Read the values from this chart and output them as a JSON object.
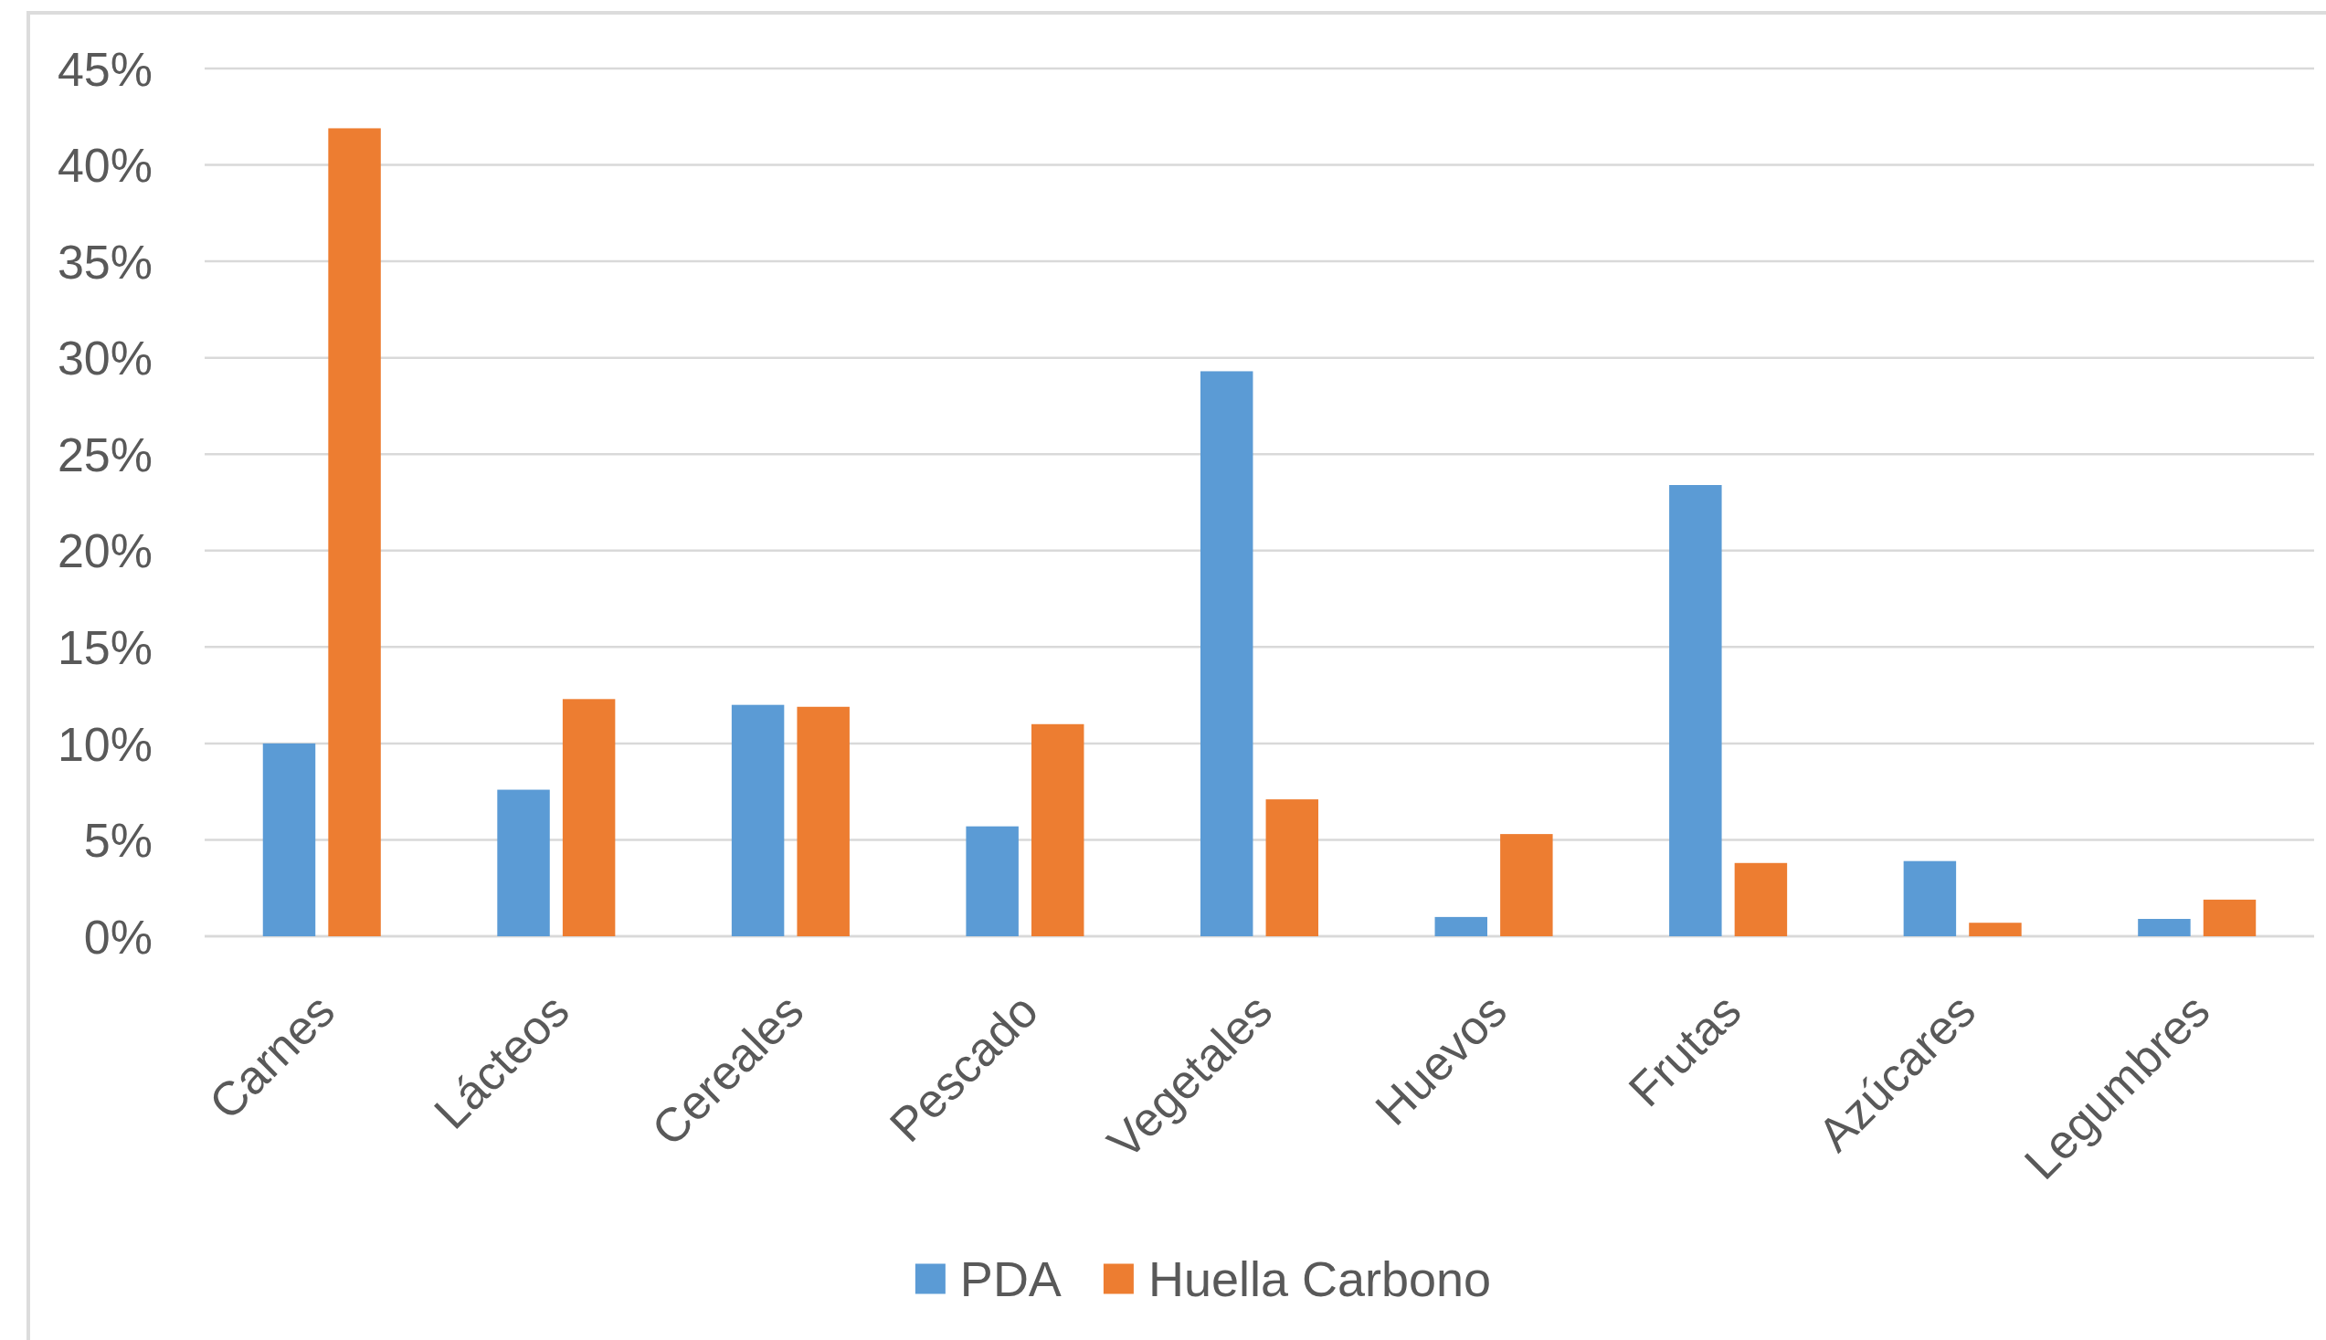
{
  "chart_data": {
    "type": "bar",
    "categories": [
      "Carnes",
      "Lácteos",
      "Cereales",
      "Pescado",
      "Vegetales",
      "Huevos",
      "Frutas",
      "Azúcares",
      "Legumbres"
    ],
    "series": [
      {
        "name": "PDA",
        "color": "#5b9bd5",
        "values": [
          10,
          7.6,
          12,
          5.7,
          29.3,
          1,
          23.4,
          3.9,
          0.9
        ]
      },
      {
        "name": "Huella Carbono",
        "color": "#ed7d31",
        "values": [
          41.9,
          12.3,
          11.9,
          11,
          7.1,
          5.3,
          3.8,
          0.7,
          1.9
        ]
      }
    ],
    "ylim": [
      0,
      45
    ],
    "yticks": [
      {
        "value": 0,
        "label": "0%"
      },
      {
        "value": 5,
        "label": "5%"
      },
      {
        "value": 10,
        "label": "10%"
      },
      {
        "value": 15,
        "label": "15%"
      },
      {
        "value": 20,
        "label": "20%"
      },
      {
        "value": 25,
        "label": "25%"
      },
      {
        "value": 30,
        "label": "30%"
      },
      {
        "value": 35,
        "label": "35%"
      },
      {
        "value": 40,
        "label": "40%"
      },
      {
        "value": 45,
        "label": "45%"
      }
    ],
    "grid": "y",
    "legend": "bottom"
  }
}
